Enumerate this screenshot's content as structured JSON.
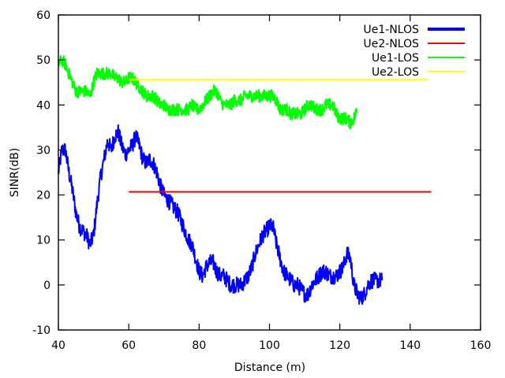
{
  "chart_data": {
    "type": "line",
    "title": "",
    "xlabel": "Distance (m)",
    "ylabel": "SINR(dB)",
    "xlim": [
      40,
      160
    ],
    "ylim": [
      -10,
      60
    ],
    "xticks": [
      "40",
      "60",
      "80",
      "100",
      "120",
      "140",
      "160"
    ],
    "yticks": [
      "-10",
      "0",
      "10",
      "20",
      "30",
      "40",
      "50",
      "60"
    ],
    "xtick_values": [
      40,
      60,
      80,
      100,
      120,
      140,
      160
    ],
    "ytick_values": [
      -10,
      0,
      10,
      20,
      30,
      40,
      50,
      60
    ],
    "grid": false,
    "legend_position": "top-right",
    "series": [
      {
        "name": "Ue1-NLOS",
        "color": "#0000ff",
        "noise": 1.8,
        "x": [
          40,
          41,
          42,
          43,
          44,
          45,
          46,
          47,
          48,
          49,
          50,
          51,
          52,
          53,
          54,
          55,
          56,
          57,
          58,
          59,
          60,
          61,
          62,
          63,
          64,
          65,
          66,
          67,
          68,
          69,
          70,
          71,
          72,
          73,
          74,
          75,
          76,
          77,
          78,
          79,
          80,
          81,
          82,
          83,
          84,
          85,
          86,
          87,
          88,
          89,
          90,
          91,
          92,
          93,
          94,
          95,
          96,
          97,
          98,
          99,
          100,
          101,
          102,
          103,
          104,
          105,
          106,
          107,
          108,
          109,
          110,
          111,
          112,
          113,
          114,
          115,
          116,
          117,
          118,
          119,
          120,
          121,
          122,
          123,
          124,
          125,
          126,
          127,
          128,
          129,
          130,
          131,
          132
        ],
        "y": [
          25,
          30,
          30,
          25,
          21,
          16,
          13,
          12,
          11,
          9,
          11,
          18,
          24,
          28,
          32,
          30,
          33,
          34,
          31,
          29,
          30,
          31,
          33,
          31,
          28,
          27,
          28,
          27,
          25,
          22,
          20,
          19,
          18,
          17,
          16,
          14,
          12,
          10,
          9,
          6,
          3,
          2,
          4,
          5,
          5,
          3,
          2,
          2,
          1,
          0,
          0,
          0,
          0,
          1,
          2,
          4,
          7,
          9,
          11,
          12,
          13,
          13,
          9,
          6,
          3,
          2,
          1,
          0,
          0,
          -1,
          -2,
          -2,
          0,
          1,
          2,
          3,
          3,
          2,
          2,
          2,
          3,
          4,
          7,
          6,
          0,
          -2,
          -3,
          -2,
          0,
          1,
          1,
          1,
          1
        ]
      },
      {
        "name": "Ue2-NLOS",
        "color": "#ff0000",
        "noise": 0,
        "x": [
          60,
          146
        ],
        "y": [
          20.7,
          20.7
        ]
      },
      {
        "name": "Ue1-LOS",
        "color": "#00ff00",
        "noise": 1.4,
        "x": [
          40,
          41,
          42,
          43,
          44,
          45,
          46,
          47,
          48,
          49,
          50,
          51,
          52,
          53,
          54,
          55,
          56,
          57,
          58,
          59,
          60,
          61,
          62,
          63,
          64,
          65,
          66,
          67,
          68,
          69,
          70,
          71,
          72,
          73,
          74,
          75,
          76,
          77,
          78,
          79,
          80,
          81,
          82,
          83,
          84,
          85,
          86,
          87,
          88,
          89,
          90,
          91,
          92,
          93,
          94,
          95,
          96,
          97,
          98,
          99,
          100,
          101,
          102,
          103,
          104,
          105,
          106,
          107,
          108,
          109,
          110,
          111,
          112,
          113,
          114,
          115,
          116,
          117,
          118,
          119,
          120,
          121,
          122,
          123,
          124,
          125
        ],
        "y": [
          49,
          50,
          49,
          47,
          45,
          43,
          43,
          43,
          43,
          42,
          45,
          47,
          47,
          47,
          47,
          47,
          46,
          46,
          45,
          45,
          46,
          46,
          45,
          44,
          43,
          42,
          42,
          42,
          41,
          40,
          40,
          39,
          39,
          39,
          39,
          39,
          39,
          39,
          40,
          39,
          39,
          40,
          41,
          42,
          43,
          43,
          41,
          40,
          40,
          40,
          41,
          41,
          41,
          42,
          42,
          42,
          42,
          42,
          42,
          42,
          42,
          42,
          41,
          39,
          39,
          39,
          38,
          38,
          38,
          38,
          39,
          40,
          40,
          39,
          39,
          39,
          40,
          40,
          40,
          38,
          37,
          37,
          37,
          36,
          37,
          39
        ]
      },
      {
        "name": "Ue2-LOS",
        "color": "#ffff00",
        "noise": 0,
        "x": [
          60,
          145
        ],
        "y": [
          45.6,
          45.6
        ]
      }
    ]
  }
}
